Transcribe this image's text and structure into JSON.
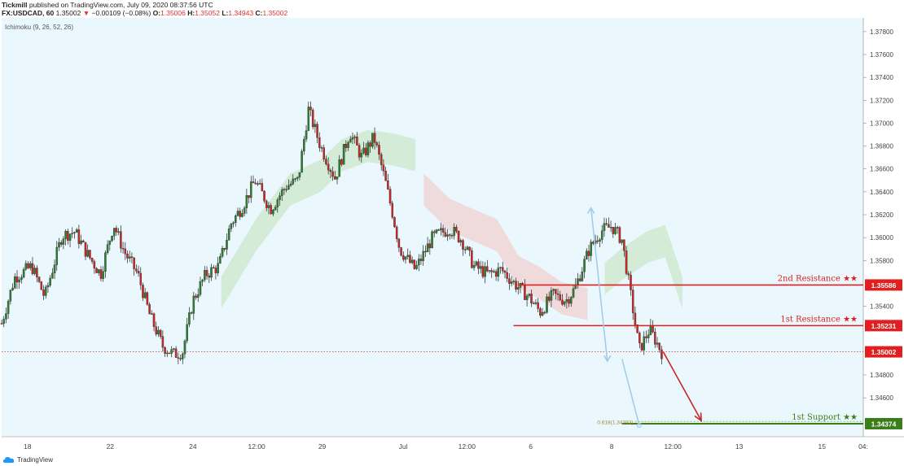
{
  "header": {
    "publisher": "Tickmill",
    "published_text": "published on TradingView.com, July 09, 2020 08:37:56 UTC",
    "symbol": "FX:USDCAD, 60",
    "last": "1.35002",
    "change": "−0.00109 (−0.08%)",
    "o_label": "O:",
    "o_value": "1.35006",
    "h_label": "H:",
    "h_value": "1.35052",
    "l_label": "L:",
    "l_value": "1.34943",
    "c_label": "C:",
    "c_value": "1.35002"
  },
  "indicator_label": "Ichimoku (9, 26, 52, 26)",
  "footer": {
    "brand": "TradingView"
  },
  "colors": {
    "background": "#eaf7fc",
    "up": "#2e7d32",
    "down": "#c62828",
    "resistance": "#e02020",
    "support": "#3a7d1a",
    "cloud_bull": "#cfe9d0",
    "cloud_bear": "#f0d6d6",
    "fib_arrow": "#9ecbe8"
  },
  "chart_data": {
    "type": "candlestick",
    "instrument": "FX:USDCAD",
    "timeframe": "60",
    "y_axis": {
      "min": 1.3426,
      "max": 1.3792,
      "ticks": [
        "1.37800",
        "1.37600",
        "1.37400",
        "1.37200",
        "1.37000",
        "1.36800",
        "1.36600",
        "1.36400",
        "1.36200",
        "1.36000",
        "1.35800",
        "1.35400",
        "1.34800",
        "1.34600"
      ]
    },
    "x_axis": {
      "ticks": [
        {
          "label": "18",
          "t": 0.03
        },
        {
          "label": "22",
          "t": 0.126
        },
        {
          "label": "24",
          "t": 0.222
        },
        {
          "label": "12:00",
          "t": 0.296
        },
        {
          "label": "29",
          "t": 0.372
        },
        {
          "label": "Jul",
          "t": 0.466
        },
        {
          "label": "12:00",
          "t": 0.54
        },
        {
          "label": "6",
          "t": 0.614
        },
        {
          "label": "8",
          "t": 0.708
        },
        {
          "label": "12:00",
          "t": 0.779
        },
        {
          "label": "13",
          "t": 0.856
        },
        {
          "label": "15",
          "t": 0.952
        },
        {
          "label": "04:",
          "t": 1.0
        }
      ]
    },
    "price_path": [
      [
        0.0,
        1.3525
      ],
      [
        0.015,
        1.3565
      ],
      [
        0.035,
        1.3575
      ],
      [
        0.05,
        1.3548
      ],
      [
        0.07,
        1.3602
      ],
      [
        0.085,
        1.3605
      ],
      [
        0.1,
        1.3585
      ],
      [
        0.115,
        1.3568
      ],
      [
        0.13,
        1.3612
      ],
      [
        0.142,
        1.3588
      ],
      [
        0.158,
        1.3568
      ],
      [
        0.172,
        1.3532
      ],
      [
        0.187,
        1.3505
      ],
      [
        0.2,
        1.3498
      ],
      [
        0.21,
        1.35
      ],
      [
        0.222,
        1.3545
      ],
      [
        0.237,
        1.3568
      ],
      [
        0.252,
        1.3575
      ],
      [
        0.266,
        1.3612
      ],
      [
        0.28,
        1.3628
      ],
      [
        0.294,
        1.365
      ],
      [
        0.312,
        1.3625
      ],
      [
        0.33,
        1.3645
      ],
      [
        0.344,
        1.365
      ],
      [
        0.356,
        1.3712
      ],
      [
        0.37,
        1.368
      ],
      [
        0.387,
        1.3652
      ],
      [
        0.404,
        1.3692
      ],
      [
        0.418,
        1.367
      ],
      [
        0.432,
        1.3688
      ],
      [
        0.445,
        1.365
      ],
      [
        0.454,
        1.362
      ],
      [
        0.462,
        1.359
      ],
      [
        0.48,
        1.3572
      ],
      [
        0.5,
        1.36
      ],
      [
        0.52,
        1.3608
      ],
      [
        0.534,
        1.3598
      ],
      [
        0.548,
        1.3575
      ],
      [
        0.565,
        1.3568
      ],
      [
        0.58,
        1.3572
      ],
      [
        0.595,
        1.356
      ],
      [
        0.612,
        1.3548
      ],
      [
        0.625,
        1.3535
      ],
      [
        0.64,
        1.355
      ],
      [
        0.655,
        1.3545
      ],
      [
        0.665,
        1.3555
      ],
      [
        0.682,
        1.359
      ],
      [
        0.696,
        1.3606
      ],
      [
        0.708,
        1.361
      ],
      [
        0.72,
        1.3598
      ],
      [
        0.73,
        1.355
      ],
      [
        0.74,
        1.3502
      ],
      [
        0.752,
        1.352
      ],
      [
        0.766,
        1.35
      ]
    ],
    "ichimoku_cloud": [
      {
        "label": "bull",
        "points": [
          [
            0.255,
            1.356
          ],
          [
            0.295,
            1.361
          ],
          [
            0.335,
            1.365
          ],
          [
            0.37,
            1.3662
          ],
          [
            0.395,
            1.368
          ],
          [
            0.425,
            1.3688
          ],
          [
            0.455,
            1.3685
          ],
          [
            0.48,
            1.368
          ]
        ]
      },
      {
        "label": "bear",
        "points": [
          [
            0.49,
            1.365
          ],
          [
            0.52,
            1.3628
          ],
          [
            0.55,
            1.3618
          ],
          [
            0.575,
            1.361
          ],
          [
            0.6,
            1.3578
          ],
          [
            0.625,
            1.3568
          ],
          [
            0.65,
            1.3555
          ],
          [
            0.68,
            1.355
          ]
        ]
      },
      {
        "label": "bull",
        "points": [
          [
            0.7,
            1.3572
          ],
          [
            0.72,
            1.3585
          ],
          [
            0.75,
            1.36
          ],
          [
            0.77,
            1.3605
          ],
          [
            0.79,
            1.356
          ]
        ]
      }
    ],
    "levels": [
      {
        "name": "2nd Resistance ★★",
        "value": 1.35586,
        "label": "1.35586",
        "kind": "resistance",
        "start": 0.6
      },
      {
        "name": "1st Resistance ★★",
        "value": 1.35231,
        "label": "1.35231",
        "kind": "resistance",
        "start": 0.594
      },
      {
        "name": "1st Support ★★",
        "value": 1.34374,
        "label": "1.34374",
        "kind": "support",
        "start": 0.72
      }
    ],
    "current_price": {
      "value": 1.35002,
      "label": "1.35002"
    },
    "fib_label": "0.618(1.34393)",
    "fib_value": 1.34393,
    "projection_arrow": [
      [
        0.768,
        1.35
      ],
      [
        0.812,
        1.344
      ]
    ],
    "fib_arrows": [
      [
        [
          0.684,
          1.3626
        ],
        [
          0.703,
          1.3492
        ]
      ],
      [
        [
          0.72,
          1.3494
        ],
        [
          0.74,
          1.3436
        ]
      ]
    ]
  }
}
